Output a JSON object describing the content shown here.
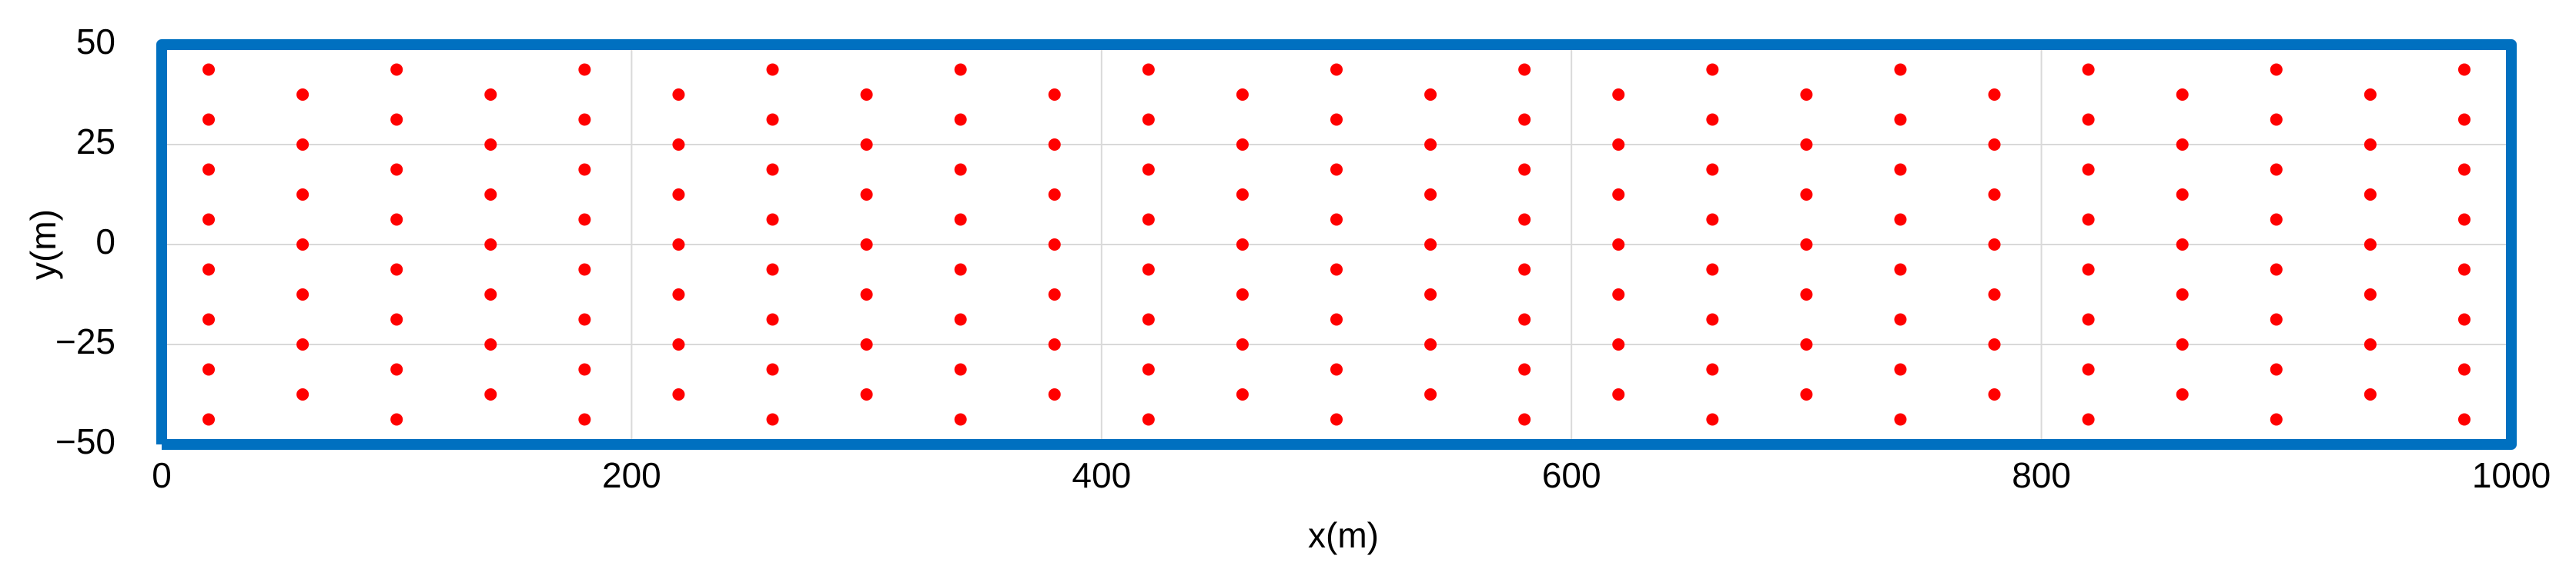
{
  "chart_data": {
    "type": "scatter",
    "x_label": "x(m)",
    "y_label": "y(m)",
    "xlim": [
      0,
      1000
    ],
    "ylim": [
      -50,
      50
    ],
    "xticks": [
      0,
      200,
      400,
      600,
      800,
      1000
    ],
    "yticks": [
      {
        "value": -50,
        "label": "−50"
      },
      {
        "value": -25,
        "label": "−25"
      },
      0,
      25,
      50
    ],
    "grid": true,
    "series": [
      {
        "color": "#ff0000",
        "line": false,
        "x": [
          20,
          20,
          20,
          20,
          20,
          20,
          20,
          20,
          60,
          60,
          60,
          60,
          60,
          60,
          60,
          100,
          100,
          100,
          100,
          100,
          100,
          100,
          100,
          140,
          140,
          140,
          140,
          140,
          140,
          140,
          180,
          180,
          180,
          180,
          180,
          180,
          180,
          180,
          220,
          220,
          220,
          220,
          220,
          220,
          220,
          260,
          260,
          260,
          260,
          260,
          260,
          260,
          260,
          300,
          300,
          300,
          300,
          300,
          300,
          300,
          340,
          340,
          340,
          340,
          340,
          340,
          340,
          340,
          380,
          380,
          380,
          380,
          380,
          380,
          380,
          420,
          420,
          420,
          420,
          420,
          420,
          420,
          420,
          460,
          460,
          460,
          460,
          460,
          460,
          460,
          500,
          500,
          500,
          500,
          500,
          500,
          500,
          500,
          540,
          540,
          540,
          540,
          540,
          540,
          540,
          580,
          580,
          580,
          580,
          580,
          580,
          580,
          580,
          620,
          620,
          620,
          620,
          620,
          620,
          620,
          660,
          660,
          660,
          660,
          660,
          660,
          660,
          660,
          700,
          700,
          700,
          700,
          700,
          700,
          700,
          740,
          740,
          740,
          740,
          740,
          740,
          740,
          740,
          780,
          780,
          780,
          780,
          780,
          780,
          780,
          820,
          820,
          820,
          820,
          820,
          820,
          820,
          820,
          860,
          860,
          860,
          860,
          860,
          860,
          860,
          900,
          900,
          900,
          900,
          900,
          900,
          900,
          900,
          940,
          940,
          940,
          940,
          940,
          940,
          940,
          980,
          980,
          980,
          980,
          980,
          980,
          980,
          980
        ],
        "y": [
          -43.75,
          -31.25,
          -18.75,
          -6.25,
          6.25,
          18.75,
          31.25,
          43.75,
          -37.5,
          -25,
          -12.5,
          0,
          12.5,
          25,
          37.5,
          -43.75,
          -31.25,
          -18.75,
          -6.25,
          6.25,
          18.75,
          31.25,
          43.75,
          -37.5,
          -25,
          -12.5,
          0,
          12.5,
          25,
          37.5,
          -43.75,
          -31.25,
          -18.75,
          -6.25,
          6.25,
          18.75,
          31.25,
          43.75,
          -37.5,
          -25,
          -12.5,
          0,
          12.5,
          25,
          37.5,
          -43.75,
          -31.25,
          -18.75,
          -6.25,
          6.25,
          18.75,
          31.25,
          43.75,
          -37.5,
          -25,
          -12.5,
          0,
          12.5,
          25,
          37.5,
          -43.75,
          -31.25,
          -18.75,
          -6.25,
          6.25,
          18.75,
          31.25,
          43.75,
          -37.5,
          -25,
          -12.5,
          0,
          12.5,
          25,
          37.5,
          -43.75,
          -31.25,
          -18.75,
          -6.25,
          6.25,
          18.75,
          31.25,
          43.75,
          -37.5,
          -25,
          -12.5,
          0,
          12.5,
          25,
          37.5,
          -43.75,
          -31.25,
          -18.75,
          -6.25,
          6.25,
          18.75,
          31.25,
          43.75,
          -37.5,
          -25,
          -12.5,
          0,
          12.5,
          25,
          37.5,
          -43.75,
          -31.25,
          -18.75,
          -6.25,
          6.25,
          18.75,
          31.25,
          43.75,
          -37.5,
          -25,
          -12.5,
          0,
          12.5,
          25,
          37.5,
          -43.75,
          -31.25,
          -18.75,
          -6.25,
          6.25,
          18.75,
          31.25,
          43.75,
          -37.5,
          -25,
          -12.5,
          0,
          12.5,
          25,
          37.5,
          -43.75,
          -31.25,
          -18.75,
          -6.25,
          6.25,
          18.75,
          31.25,
          43.75,
          -37.5,
          -25,
          -12.5,
          0,
          12.5,
          25,
          37.5,
          -43.75,
          -31.25,
          -18.75,
          -6.25,
          6.25,
          18.75,
          31.25,
          43.75,
          -37.5,
          -25,
          -12.5,
          0,
          12.5,
          25,
          37.5,
          -43.75,
          -31.25,
          -18.75,
          -6.25,
          6.25,
          18.75,
          31.25,
          43.75,
          -37.5,
          -25,
          -12.5,
          0,
          12.5,
          25,
          37.5,
          -43.75,
          -31.25,
          -18.75,
          -6.25,
          6.25,
          18.75,
          31.25,
          43.75
        ]
      },
      {
        "color": "#0070c0",
        "line": true,
        "x": [
          0,
          1000,
          1000,
          0,
          0
        ],
        "y": [
          -50,
          -50,
          50,
          50,
          -50
        ]
      }
    ]
  }
}
